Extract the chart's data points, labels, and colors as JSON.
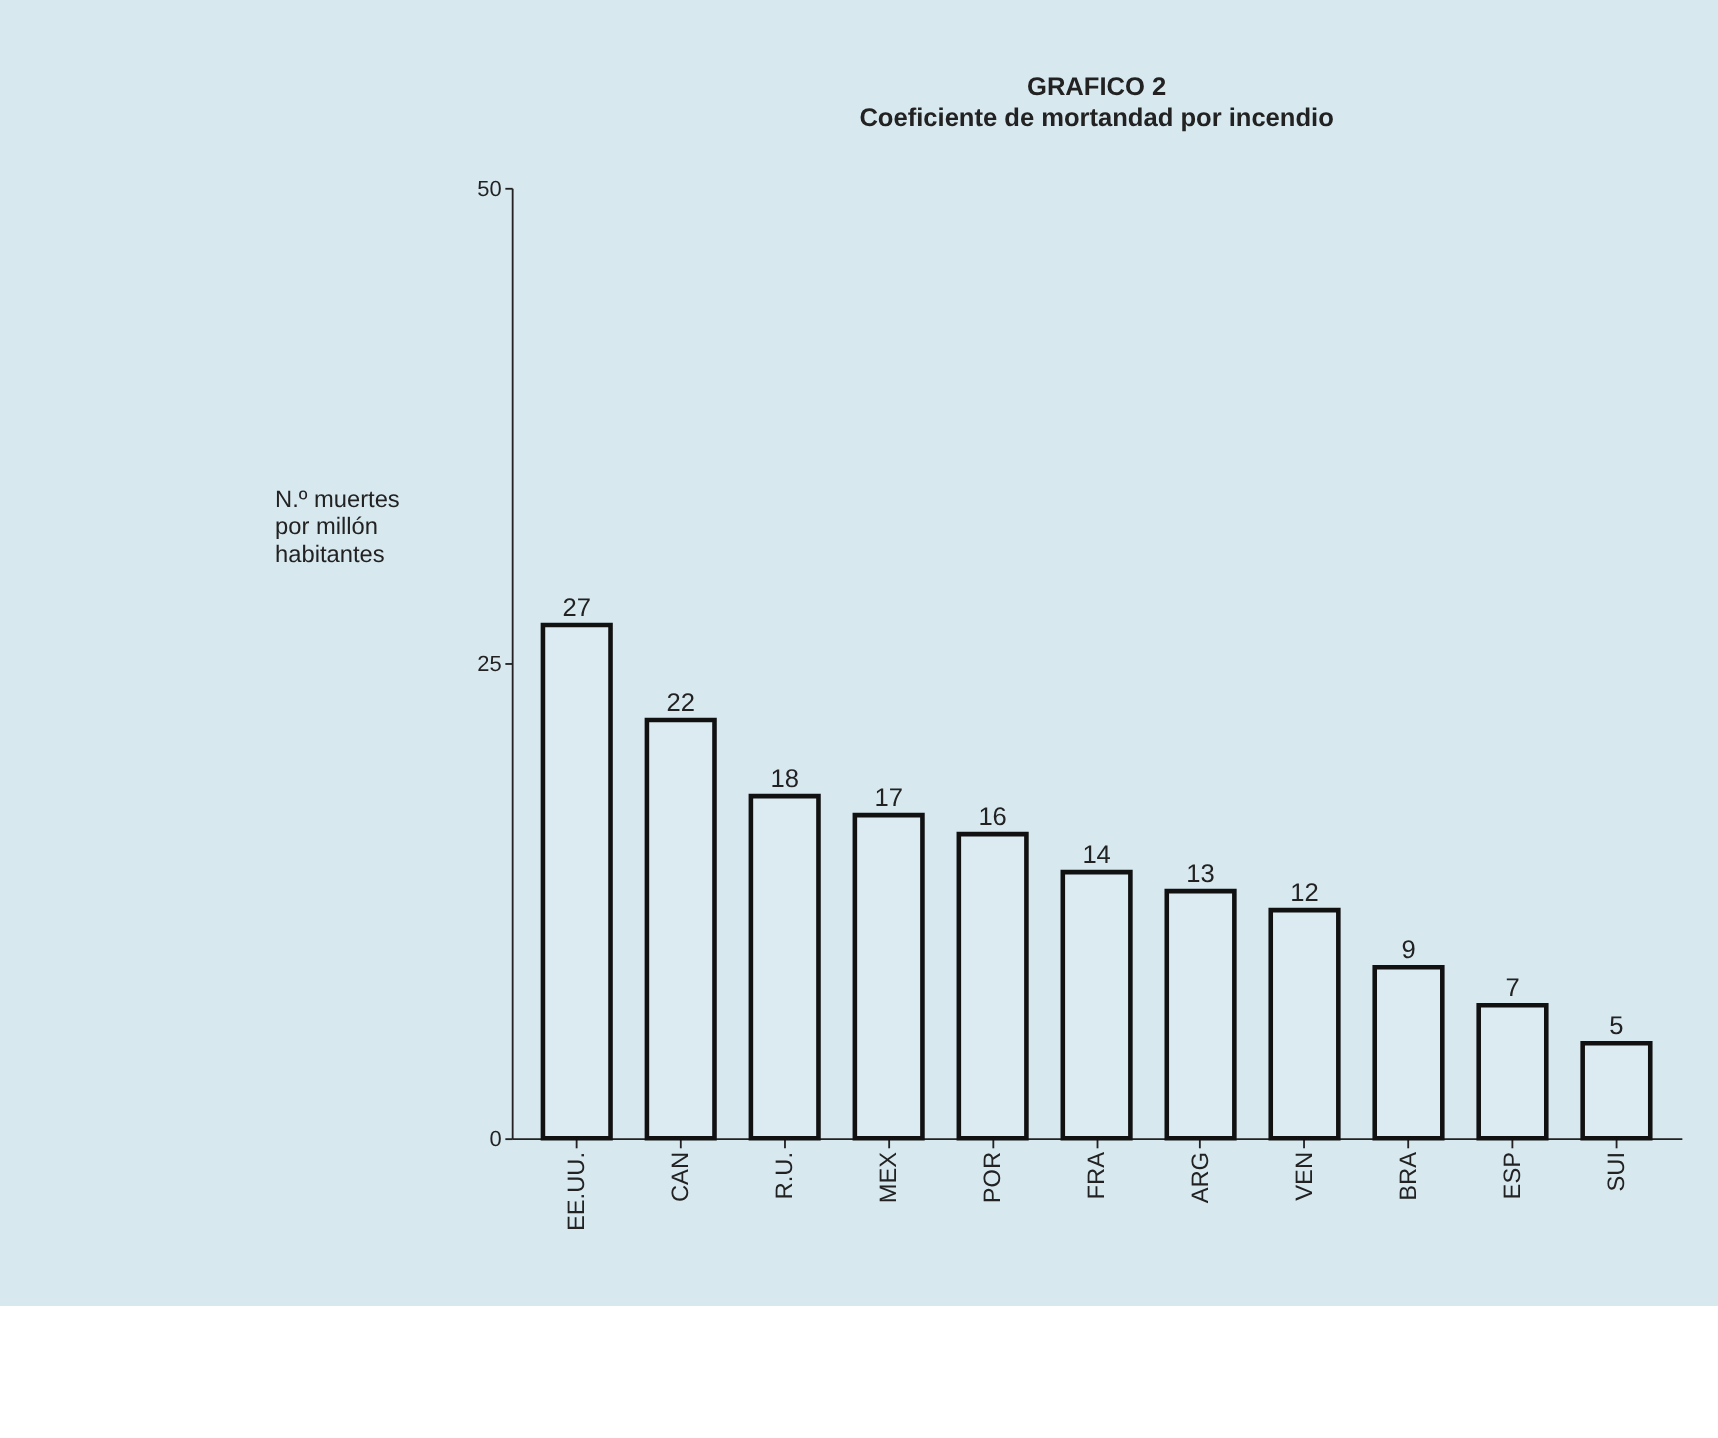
{
  "chart_data": {
    "type": "bar",
    "title": "GRAFICO 2",
    "subtitle": "Coeficiente de mortandad por incendio",
    "ylabel": "N.º muertes por millón habitantes",
    "categories": [
      "EE.UU.",
      "CAN",
      "R.U.",
      "MEX",
      "POR",
      "FRA",
      "ARG",
      "VEN",
      "BRA",
      "ESP",
      "SUI"
    ],
    "values": [
      27,
      22,
      18,
      17,
      16,
      14,
      13,
      12,
      9,
      7,
      5
    ],
    "color": "#dcebf2",
    "ylim": [
      0,
      50
    ],
    "yticks": [
      0,
      25,
      50
    ],
    "grid": false,
    "data_labels": true
  }
}
